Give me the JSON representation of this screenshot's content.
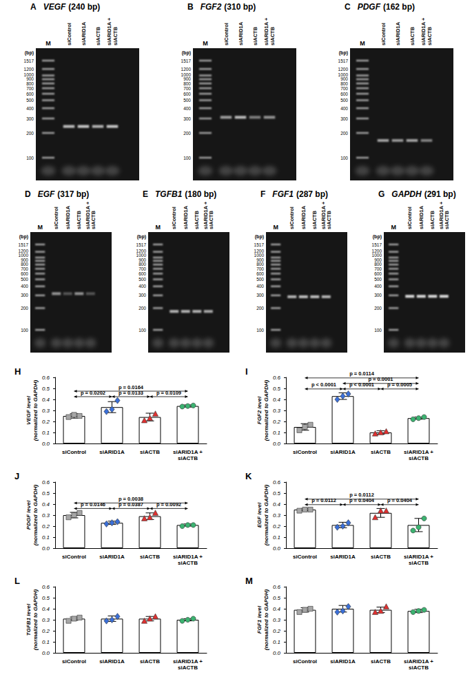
{
  "gels": {
    "ladder_bp": [
      1517,
      1200,
      1000,
      900,
      800,
      700,
      600,
      500,
      400,
      300,
      200,
      100
    ],
    "ladder_unit": "(bp)",
    "marker_lane": "M",
    "lanes": [
      "siControl",
      "siARID1A",
      "siACTB",
      "siARID1A + siACTB"
    ],
    "panels": [
      {
        "panel": "A",
        "gene": "VEGF",
        "product": "(240 bp)",
        "band_bp": 240,
        "band_intensity": [
          0.8,
          0.85,
          0.75,
          0.85
        ]
      },
      {
        "panel": "B",
        "gene": "FGF2",
        "product": "(310 bp)",
        "band_bp": 310,
        "band_intensity": [
          0.65,
          0.8,
          0.5,
          0.6
        ]
      },
      {
        "panel": "C",
        "gene": "PDGF",
        "product": "(162 bp)",
        "band_bp": 162,
        "band_intensity": [
          0.65,
          0.6,
          0.65,
          0.5
        ]
      },
      {
        "panel": "D",
        "gene": "EGF",
        "product": "(317 bp)",
        "band_bp": 317,
        "band_intensity": [
          0.6,
          0.3,
          0.6,
          0.3
        ]
      },
      {
        "panel": "E",
        "gene": "TGFB1",
        "product": "(180 bp)",
        "band_bp": 180,
        "band_intensity": [
          0.75,
          0.75,
          0.75,
          0.7
        ]
      },
      {
        "panel": "F",
        "gene": "FGF1",
        "product": "(287 bp)",
        "band_bp": 287,
        "band_intensity": [
          0.75,
          0.8,
          0.8,
          0.75
        ]
      },
      {
        "panel": "G",
        "gene": "GAPDH",
        "product": "(291 bp)",
        "band_bp": 291,
        "band_intensity": [
          0.95,
          0.95,
          0.95,
          0.95
        ]
      }
    ]
  },
  "chart_data": [
    {
      "type": "bar",
      "panel": "H",
      "y_label": "VEGF level (normalized to GAPDH)",
      "categories": [
        "siControl",
        "siARID1A",
        "siACTB",
        "siARID1A + siACTB"
      ],
      "values": [
        0.25,
        0.33,
        0.24,
        0.34
      ],
      "errors": [
        0.02,
        0.05,
        0.035,
        0.01
      ],
      "points": [
        {
          "color": "#a6a6a6",
          "marker": "square",
          "values": [
            0.24,
            0.26,
            0.25
          ]
        },
        {
          "color": "#3a6fd8",
          "marker": "diamond",
          "values": [
            0.29,
            0.31,
            0.39
          ]
        },
        {
          "color": "#e03030",
          "marker": "triangle",
          "values": [
            0.21,
            0.23,
            0.27
          ]
        },
        {
          "color": "#3cb371",
          "marker": "circle",
          "values": [
            0.335,
            0.34,
            0.345
          ]
        }
      ],
      "ylim": [
        0,
        0.6
      ],
      "yticks": [
        {
          "value": 0,
          "label": "0.0"
        },
        0.1,
        0.2,
        0.3,
        0.4,
        0.5,
        0.6
      ],
      "grid": false,
      "comparisons": [
        {
          "pair": [
            "siControl",
            "siARID1A"
          ],
          "label": "p = 0.0202"
        },
        {
          "pair": [
            "siARID1A",
            "siACTB"
          ],
          "label": "p = 0.0133"
        },
        {
          "pair": [
            "siACTB",
            "siARID1A + siACTB"
          ],
          "label": "p = 0.0109"
        },
        {
          "pair": [
            "siControl",
            "siARID1A + siACTB"
          ],
          "label": "p = 0.0164"
        }
      ]
    },
    {
      "type": "bar",
      "panel": "I",
      "y_label": "FGF2 level (normalized to GAPDH)",
      "categories": [
        "siControl",
        "siARID1A",
        "siACTB",
        "siARID1A + siACTB"
      ],
      "values": [
        0.15,
        0.43,
        0.1,
        0.23
      ],
      "errors": [
        0.03,
        0.03,
        0.015,
        0.01
      ],
      "points": [
        {
          "color": "#a6a6a6",
          "marker": "square",
          "values": [
            0.12,
            0.15,
            0.17
          ]
        },
        {
          "color": "#3a6fd8",
          "marker": "diamond",
          "values": [
            0.4,
            0.43,
            0.45
          ]
        },
        {
          "color": "#e03030",
          "marker": "triangle",
          "values": [
            0.09,
            0.1,
            0.11
          ]
        },
        {
          "color": "#3cb371",
          "marker": "circle",
          "values": [
            0.22,
            0.23,
            0.24
          ]
        }
      ],
      "ylim": [
        0,
        0.6
      ],
      "yticks": [
        {
          "value": 0,
          "label": "0.0"
        },
        0.1,
        0.2,
        0.3,
        0.4,
        0.5,
        0.6
      ],
      "grid": false,
      "comparisons": [
        {
          "pair": [
            "siControl",
            "siARID1A"
          ],
          "label": "p < 0.0001"
        },
        {
          "pair": [
            "siARID1A",
            "siACTB"
          ],
          "label": "p < 0.0001"
        },
        {
          "pair": [
            "siACTB",
            "siARID1A + siACTB"
          ],
          "label": "p = 0.0005"
        },
        {
          "pair": [
            "siARID1A",
            "siARID1A + siACTB"
          ],
          "label": "p = 0.0001"
        },
        {
          "pair": [
            "siControl",
            "siARID1A + siACTB"
          ],
          "label": "p = 0.0114"
        }
      ]
    },
    {
      "type": "bar",
      "panel": "J",
      "y_label": "PDGF level (normalized to GAPDH)",
      "categories": [
        "siControl",
        "siARID1A",
        "siACTB",
        "siARID1A + siACTB"
      ],
      "values": [
        0.3,
        0.23,
        0.29,
        0.21
      ],
      "errors": [
        0.025,
        0.015,
        0.03,
        0.01
      ],
      "points": [
        {
          "color": "#a6a6a6",
          "marker": "square",
          "values": [
            0.28,
            0.3,
            0.32
          ]
        },
        {
          "color": "#3a6fd8",
          "marker": "diamond",
          "values": [
            0.22,
            0.23,
            0.24
          ]
        },
        {
          "color": "#e03030",
          "marker": "triangle",
          "values": [
            0.27,
            0.28,
            0.32
          ]
        },
        {
          "color": "#3cb371",
          "marker": "circle",
          "values": [
            0.2,
            0.21,
            0.21
          ]
        }
      ],
      "ylim": [
        0,
        0.6
      ],
      "yticks": [
        {
          "value": 0,
          "label": "0.0"
        },
        0.1,
        0.2,
        0.3,
        0.4,
        0.5,
        0.6
      ],
      "grid": false,
      "comparisons": [
        {
          "pair": [
            "siControl",
            "siARID1A"
          ],
          "label": "p = 0.0146"
        },
        {
          "pair": [
            "siARID1A",
            "siACTB"
          ],
          "label": "p = 0.0387"
        },
        {
          "pair": [
            "siACTB",
            "siARID1A + siACTB"
          ],
          "label": "p = 0.0092"
        },
        {
          "pair": [
            "siControl",
            "siARID1A + siACTB"
          ],
          "label": "p = 0.0038"
        }
      ]
    },
    {
      "type": "bar",
      "panel": "K",
      "y_label": "EGF level (normalized to GAPDH)",
      "categories": [
        "siControl",
        "siARID1A",
        "siACTB",
        "siARID1A + siACTB"
      ],
      "values": [
        0.35,
        0.21,
        0.32,
        0.21
      ],
      "errors": [
        0.01,
        0.025,
        0.04,
        0.06
      ],
      "points": [
        {
          "color": "#a6a6a6",
          "marker": "square",
          "values": [
            0.34,
            0.35,
            0.35
          ]
        },
        {
          "color": "#3a6fd8",
          "marker": "diamond",
          "values": [
            0.19,
            0.2,
            0.23
          ]
        },
        {
          "color": "#e03030",
          "marker": "triangle",
          "values": [
            0.28,
            0.34,
            0.34
          ]
        },
        {
          "color": "#3cb371",
          "marker": "circle",
          "values": [
            0.16,
            0.19,
            0.27
          ]
        }
      ],
      "ylim": [
        0,
        0.6
      ],
      "yticks": [
        {
          "value": 0,
          "label": "0.0"
        },
        0.1,
        0.2,
        0.3,
        0.4,
        0.5,
        0.6
      ],
      "grid": false,
      "comparisons": [
        {
          "pair": [
            "siControl",
            "siARID1A"
          ],
          "label": "p = 0.0112"
        },
        {
          "pair": [
            "siARID1A",
            "siACTB"
          ],
          "label": "p = 0.0404"
        },
        {
          "pair": [
            "siACTB",
            "siARID1A + siACTB"
          ],
          "label": "p = 0.0404"
        },
        {
          "pair": [
            "siControl",
            "siARID1A + siACTB"
          ],
          "label": "p = 0.0112"
        }
      ]
    },
    {
      "type": "bar",
      "panel": "L",
      "y_label": "TGFB1 level (normalized to GAPDH)",
      "categories": [
        "siControl",
        "siARID1A",
        "siACTB",
        "siARID1A + siACTB"
      ],
      "values": [
        0.31,
        0.31,
        0.31,
        0.3
      ],
      "errors": [
        0.015,
        0.025,
        0.02,
        0.01
      ],
      "points": [
        {
          "color": "#a6a6a6",
          "marker": "square",
          "values": [
            0.29,
            0.31,
            0.32
          ]
        },
        {
          "color": "#3a6fd8",
          "marker": "diamond",
          "values": [
            0.29,
            0.3,
            0.33
          ]
        },
        {
          "color": "#e03030",
          "marker": "triangle",
          "values": [
            0.29,
            0.31,
            0.33
          ]
        },
        {
          "color": "#3cb371",
          "marker": "circle",
          "values": [
            0.29,
            0.3,
            0.31
          ]
        }
      ],
      "ylim": [
        0,
        0.6
      ],
      "yticks": [
        {
          "value": 0,
          "label": "0.0"
        },
        0.1,
        0.2,
        0.3,
        0.4,
        0.5,
        0.6
      ],
      "grid": false,
      "comparisons": []
    },
    {
      "type": "bar",
      "panel": "M",
      "y_label": "FGF1 level (normalized to GAPDH)",
      "categories": [
        "siControl",
        "siARID1A",
        "siACTB",
        "siARID1A + siACTB"
      ],
      "values": [
        0.39,
        0.4,
        0.39,
        0.38
      ],
      "errors": [
        0.02,
        0.03,
        0.025,
        0.015
      ],
      "points": [
        {
          "color": "#a6a6a6",
          "marker": "square",
          "values": [
            0.37,
            0.39,
            0.4
          ]
        },
        {
          "color": "#3a6fd8",
          "marker": "diamond",
          "values": [
            0.37,
            0.38,
            0.42
          ]
        },
        {
          "color": "#e03030",
          "marker": "triangle",
          "values": [
            0.37,
            0.38,
            0.42
          ]
        },
        {
          "color": "#3cb371",
          "marker": "circle",
          "values": [
            0.37,
            0.38,
            0.39
          ]
        }
      ],
      "ylim": [
        0,
        0.6
      ],
      "yticks": [
        {
          "value": 0,
          "label": "0.0"
        },
        0.1,
        0.2,
        0.3,
        0.4,
        0.5,
        0.6
      ],
      "grid": false,
      "comparisons": []
    }
  ]
}
